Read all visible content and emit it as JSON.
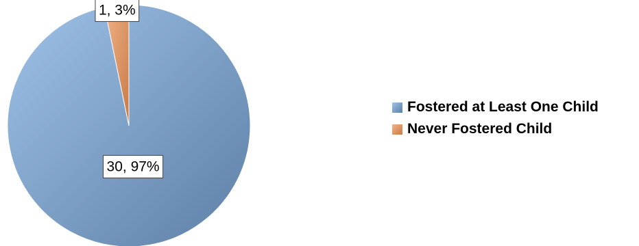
{
  "chart_data": {
    "type": "pie",
    "categories": [
      "Fostered at Least One Child",
      "Never Fostered Child"
    ],
    "values": [
      30,
      1
    ],
    "percents": [
      97,
      3
    ],
    "data_labels": [
      "30, 97%",
      "1, 3%"
    ],
    "colors": [
      "#7ea3cc",
      "#e39a6a"
    ],
    "legend_position": "right"
  }
}
